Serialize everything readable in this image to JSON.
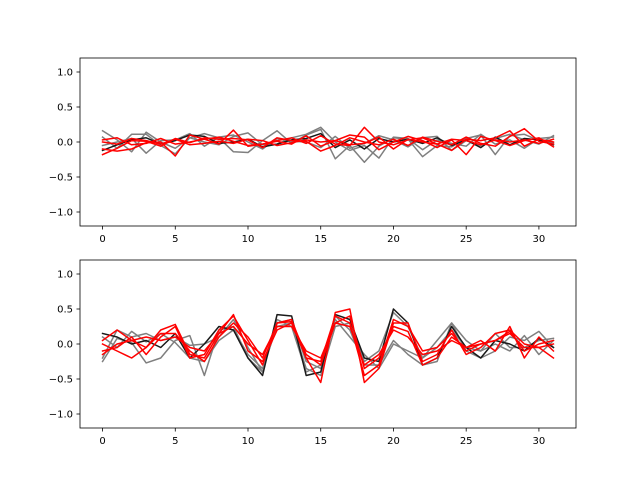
{
  "chart_data": [
    {
      "type": "line",
      "title": "",
      "xlabel": "",
      "ylabel": "",
      "xlim": [
        -1.55,
        32.55
      ],
      "ylim": [
        -1.2,
        1.2
      ],
      "xticks": [
        0,
        5,
        10,
        15,
        20,
        25,
        30
      ],
      "xtick_labels": [
        "0",
        "5",
        "10",
        "15",
        "20",
        "25",
        "30"
      ],
      "yticks": [
        -1.0,
        -0.5,
        0.0,
        0.5,
        1.0
      ],
      "ytick_labels": [
        "−1.0",
        "−0.5",
        "0.0",
        "0.5",
        "1.0"
      ],
      "grid": false,
      "x": [
        0,
        1,
        2,
        3,
        4,
        5,
        6,
        7,
        8,
        9,
        10,
        11,
        12,
        13,
        14,
        15,
        16,
        17,
        18,
        19,
        20,
        21,
        22,
        23,
        24,
        25,
        26,
        27,
        28,
        29,
        30,
        31
      ],
      "series": [
        {
          "color": "#7f7f7f",
          "values": [
            0.16,
            0.03,
            -0.14,
            0.14,
            0.0,
            -0.09,
            0.06,
            0.12,
            0.06,
            -0.14,
            -0.15,
            0.02,
            0.16,
            -0.02,
            0.1,
            0.18,
            -0.24,
            -0.05,
            -0.29,
            -0.06,
            0.06,
            0.04,
            -0.21,
            -0.05,
            -0.07,
            0.05,
            0.1,
            -0.18,
            0.09,
            0.11,
            0.02,
            -0.01
          ]
        },
        {
          "color": "#7f7f7f",
          "values": [
            0.07,
            -0.09,
            0.11,
            0.11,
            -0.05,
            -0.17,
            0.06,
            0.0,
            -0.04,
            0.08,
            0.13,
            -0.04,
            -0.03,
            0.06,
            0.11,
            0.21,
            0.0,
            -0.12,
            -0.05,
            -0.23,
            0.07,
            0.05,
            -0.11,
            0.03,
            -0.02,
            -0.06,
            0.11,
            -0.03,
            0.03,
            -0.09,
            0.05,
            0.07
          ]
        },
        {
          "color": "#7f7f7f",
          "values": [
            -0.05,
            0.0,
            0.05,
            -0.16,
            0.02,
            0.03,
            0.12,
            -0.06,
            0.07,
            0.1,
            0.0,
            -0.1,
            0.05,
            0.01,
            0.0,
            -0.08,
            0.08,
            -0.09,
            -0.02,
            0.09,
            0.03,
            -0.07,
            0.06,
            0.08,
            -0.12,
            0.02,
            -0.05,
            0.05,
            0.11,
            0.03,
            -0.03,
            0.09
          ]
        },
        {
          "color": "#1a1a1a",
          "values": [
            -0.12,
            -0.04,
            0.03,
            0.06,
            -0.03,
            0.02,
            0.1,
            0.08,
            -0.02,
            0.0,
            0.04,
            -0.07,
            -0.03,
            0.03,
            0.05,
            0.12,
            -0.08,
            0.03,
            -0.1,
            0.05,
            0.0,
            0.04,
            -0.02,
            0.06,
            -0.05,
            0.03,
            -0.08,
            0.07,
            -0.04,
            0.05,
            0.03,
            -0.04
          ]
        },
        {
          "color": "#ff0000",
          "values": [
            0.03,
            0.06,
            -0.04,
            -0.02,
            0.05,
            -0.03,
            0.0,
            0.04,
            0.07,
            0.01,
            -0.05,
            -0.03,
            0.02,
            0.06,
            -0.02,
            0.09,
            -0.03,
            -0.05,
            0.21,
            0.0,
            -0.04,
            0.03,
            0.06,
            -0.03,
            -0.12,
            0.04,
            0.02,
            0.06,
            0.16,
            -0.06,
            0.04,
            0.0
          ]
        },
        {
          "color": "#ff0000",
          "values": [
            -0.18,
            -0.09,
            0.02,
            0.01,
            -0.06,
            0.05,
            -0.01,
            0.06,
            0.04,
            0.05,
            0.03,
            -0.08,
            0.06,
            0.02,
            0.01,
            -0.13,
            -0.05,
            0.06,
            0.0,
            -0.04,
            0.04,
            -0.05,
            0.07,
            0.01,
            -0.04,
            0.07,
            -0.02,
            -0.06,
            0.08,
            0.19,
            0.01,
            -0.03
          ]
        },
        {
          "color": "#ff0000",
          "values": [
            -0.1,
            -0.13,
            -0.1,
            -0.01,
            0.0,
            -0.2,
            0.1,
            0.04,
            -0.03,
            0.17,
            -0.06,
            -0.03,
            0.01,
            -0.03,
            0.09,
            -0.06,
            0.02,
            0.1,
            0.07,
            -0.11,
            0.0,
            0.08,
            0.02,
            -0.08,
            0.03,
            -0.18,
            0.08,
            0.02,
            -0.05,
            0.02,
            0.06,
            -0.07
          ]
        },
        {
          "color": "#ff0000",
          "values": [
            0.0,
            -0.03,
            0.05,
            0.02,
            -0.03,
            0.04,
            -0.04,
            -0.02,
            0.01,
            -0.02,
            0.04,
            0.02,
            -0.05,
            -0.01,
            0.03,
            0.0,
            0.02,
            -0.04,
            -0.02,
            0.07,
            -0.1,
            0.04,
            0.0,
            -0.03,
            0.04,
            0.02,
            -0.04,
            0.03,
            0.0,
            0.03,
            -0.02,
            0.04
          ]
        }
      ]
    },
    {
      "type": "line",
      "title": "",
      "xlabel": "",
      "ylabel": "",
      "xlim": [
        -1.55,
        32.55
      ],
      "ylim": [
        -1.2,
        1.2
      ],
      "xticks": [
        0,
        5,
        10,
        15,
        20,
        25,
        30
      ],
      "xtick_labels": [
        "0",
        "5",
        "10",
        "15",
        "20",
        "25",
        "30"
      ],
      "yticks": [
        -1.0,
        -0.5,
        0.0,
        0.5,
        1.0
      ],
      "ytick_labels": [
        "−1.0",
        "−0.5",
        "0.0",
        "0.5",
        "1.0"
      ],
      "grid": false,
      "x": [
        0,
        1,
        2,
        3,
        4,
        5,
        6,
        7,
        8,
        9,
        10,
        11,
        12,
        13,
        14,
        15,
        16,
        17,
        18,
        19,
        20,
        21,
        22,
        23,
        24,
        25,
        26,
        27,
        28,
        29,
        30,
        31
      ],
      "series": [
        {
          "color": "#7f7f7f",
          "values": [
            -0.25,
            0.08,
            0.02,
            -0.27,
            -0.2,
            0.05,
            0.12,
            -0.45,
            0.2,
            0.25,
            -0.2,
            -0.4,
            0.3,
            0.35,
            -0.25,
            -0.35,
            0.4,
            0.2,
            -0.3,
            -0.3,
            0.05,
            -0.15,
            -0.3,
            -0.25,
            0.3,
            -0.1,
            -0.2,
            -0.1,
            0.1,
            0.05,
            0.18,
            -0.05
          ]
        },
        {
          "color": "#7f7f7f",
          "values": [
            0.1,
            -0.05,
            0.18,
            0.03,
            0.15,
            0.02,
            -0.2,
            -0.25,
            0.05,
            0.2,
            -0.15,
            -0.35,
            0.25,
            0.3,
            -0.35,
            -0.45,
            0.25,
            0.3,
            -0.25,
            -0.1,
            0.45,
            0.25,
            -0.2,
            -0.05,
            0.2,
            -0.05,
            -0.1,
            0.0,
            -0.1,
            0.12,
            -0.15,
            0.05
          ]
        },
        {
          "color": "#7f7f7f",
          "values": [
            -0.2,
            0.2,
            0.1,
            0.15,
            0.05,
            0.1,
            -0.02,
            0.0,
            0.1,
            0.35,
            -0.05,
            -0.4,
            0.35,
            0.25,
            -0.4,
            -0.3,
            0.35,
            0.1,
            -0.15,
            -0.35,
            0.0,
            -0.1,
            -0.2,
            0.05,
            0.3,
            0.05,
            -0.1,
            0.15,
            -0.05,
            -0.05,
            0.05,
            0.08
          ]
        },
        {
          "color": "#1a1a1a",
          "values": [
            0.15,
            0.1,
            0.0,
            0.05,
            -0.05,
            0.15,
            -0.2,
            0.0,
            0.25,
            0.2,
            -0.2,
            -0.45,
            0.42,
            0.4,
            -0.45,
            -0.4,
            0.42,
            0.35,
            -0.2,
            -0.25,
            0.5,
            0.3,
            -0.3,
            -0.2,
            0.25,
            -0.05,
            -0.2,
            0.05,
            0.0,
            -0.1,
            0.08,
            -0.05
          ]
        },
        {
          "color": "#ff0000",
          "values": [
            -0.1,
            -0.05,
            0.1,
            -0.15,
            0.1,
            0.25,
            -0.2,
            -0.15,
            0.2,
            0.4,
            0.05,
            -0.3,
            0.3,
            0.35,
            -0.2,
            -0.55,
            0.45,
            0.5,
            -0.55,
            -0.35,
            0.3,
            0.3,
            -0.25,
            -0.15,
            0.2,
            -0.15,
            -0.05,
            0.15,
            0.2,
            0.0,
            -0.05,
            -0.2
          ]
        },
        {
          "color": "#ff0000",
          "values": [
            0.05,
            0.2,
            0.05,
            -0.05,
            0.2,
            0.28,
            -0.15,
            -0.2,
            0.15,
            0.42,
            -0.1,
            -0.25,
            0.2,
            0.3,
            -0.2,
            -0.25,
            0.4,
            0.3,
            -0.45,
            -0.3,
            0.35,
            0.25,
            -0.1,
            -0.05,
            0.15,
            -0.1,
            0.0,
            0.05,
            0.18,
            -0.1,
            0.0,
            0.05
          ]
        },
        {
          "color": "#ff0000",
          "values": [
            0.0,
            -0.1,
            -0.2,
            -0.05,
            0.15,
            0.15,
            -0.1,
            -0.25,
            0.1,
            0.3,
            0.1,
            -0.2,
            0.3,
            0.32,
            -0.15,
            -0.3,
            0.3,
            0.4,
            -0.35,
            -0.2,
            0.25,
            0.18,
            -0.3,
            -0.2,
            0.1,
            -0.05,
            0.05,
            -0.1,
            0.25,
            -0.2,
            0.1,
            -0.1
          ]
        },
        {
          "color": "#ff0000",
          "values": [
            -0.15,
            0.0,
            0.05,
            0.1,
            0.05,
            0.1,
            -0.05,
            -0.1,
            0.15,
            0.25,
            0.0,
            -0.15,
            0.25,
            0.25,
            -0.1,
            -0.2,
            0.3,
            0.25,
            -0.3,
            -0.15,
            0.2,
            0.1,
            -0.15,
            -0.1,
            0.05,
            -0.05,
            0.0,
            0.05,
            0.15,
            -0.05,
            -0.05,
            0.0
          ]
        }
      ]
    }
  ]
}
